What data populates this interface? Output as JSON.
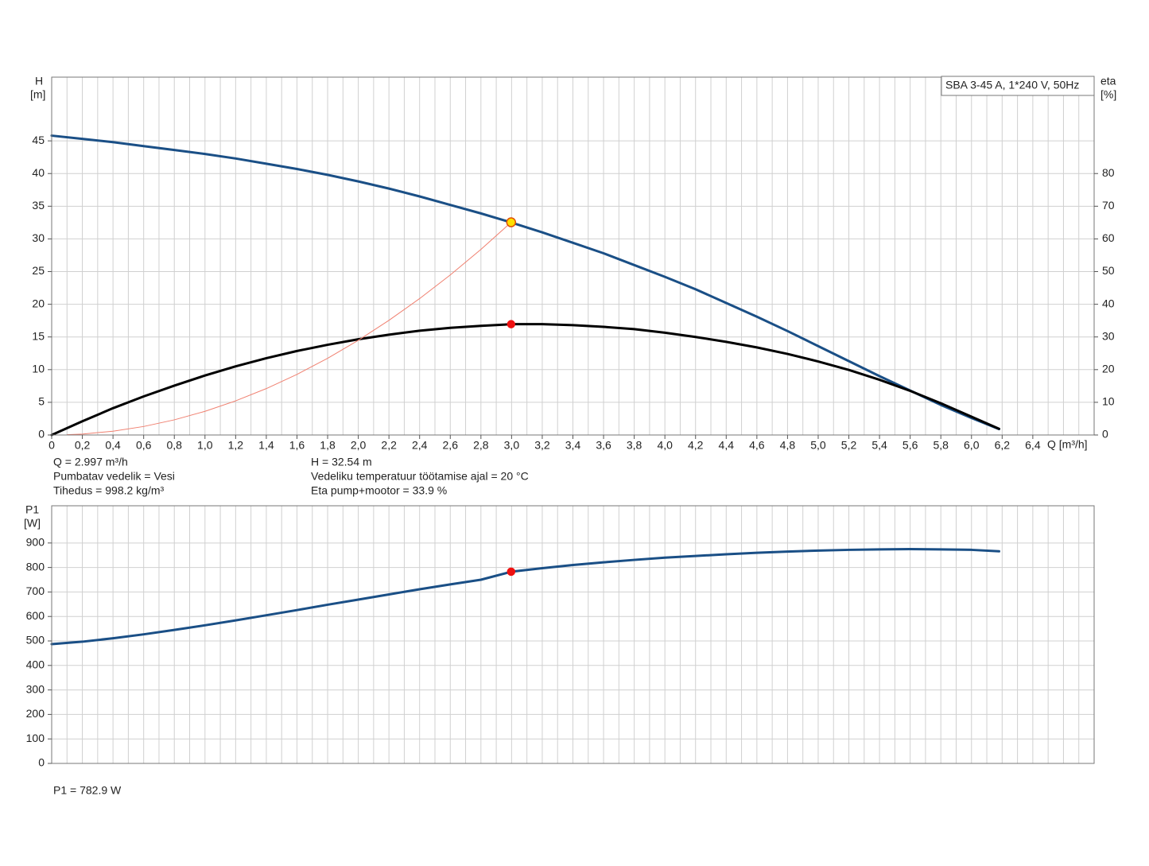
{
  "chart_data": [
    {
      "type": "line",
      "title": "SBA 3-45 A, 1*240 V, 50Hz",
      "y_label": "H",
      "y_unit": "[m]",
      "y2_label": "eta",
      "y2_unit": "[%]",
      "x_label": "Q [m³/h]",
      "xlim": [
        0,
        6.8
      ],
      "xticks": [
        0,
        {
          "value": 0.2,
          "label": "0,2"
        },
        {
          "value": 0.4,
          "label": "0,4"
        },
        {
          "value": 0.6,
          "label": "0,6"
        },
        {
          "value": 0.8,
          "label": "0,8"
        },
        {
          "value": 1.0,
          "label": "1,0"
        },
        {
          "value": 1.2,
          "label": "1,2"
        },
        {
          "value": 1.4,
          "label": "1,4"
        },
        {
          "value": 1.6,
          "label": "1,6"
        },
        {
          "value": 1.8,
          "label": "1,8"
        },
        {
          "value": 2.0,
          "label": "2,0"
        },
        {
          "value": 2.2,
          "label": "2,2"
        },
        {
          "value": 2.4,
          "label": "2,4"
        },
        {
          "value": 2.6,
          "label": "2,6"
        },
        {
          "value": 2.8,
          "label": "2,8"
        },
        {
          "value": 3.0,
          "label": "3,0"
        },
        {
          "value": 3.2,
          "label": "3,2"
        },
        {
          "value": 3.4,
          "label": "3,4"
        },
        {
          "value": 3.6,
          "label": "3,6"
        },
        {
          "value": 3.8,
          "label": "3,8"
        },
        {
          "value": 4.0,
          "label": "4,0"
        },
        {
          "value": 4.2,
          "label": "4,2"
        },
        {
          "value": 4.4,
          "label": "4,4"
        },
        {
          "value": 4.6,
          "label": "4,6"
        },
        {
          "value": 4.8,
          "label": "4,8"
        },
        {
          "value": 5.0,
          "label": "5,0"
        },
        {
          "value": 5.2,
          "label": "5,2"
        },
        {
          "value": 5.4,
          "label": "5,4"
        },
        {
          "value": 5.6,
          "label": "5,6"
        },
        {
          "value": 5.8,
          "label": "5,8"
        },
        {
          "value": 6.0,
          "label": "6,0"
        },
        {
          "value": 6.2,
          "label": "6,2"
        },
        {
          "value": 6.4,
          "label": "6,4"
        }
      ],
      "x_minor_grid": [
        0.1,
        0.3,
        0.5,
        0.7,
        0.9,
        1.1,
        1.3,
        1.5,
        1.7,
        1.9,
        2.1,
        2.3,
        2.5,
        2.7,
        2.9,
        3.1,
        3.3,
        3.5,
        3.7,
        3.9,
        4.1,
        4.3,
        4.5,
        4.7,
        4.9,
        5.1,
        5.3,
        5.5,
        5.7,
        5.9,
        6.1,
        6.3,
        6.5,
        6.6,
        6.7
      ],
      "ylim": [
        0,
        54.75
      ],
      "yticks": [
        0,
        5,
        10,
        15,
        20,
        25,
        30,
        35,
        40,
        45
      ],
      "y2lim": [
        0,
        109.5
      ],
      "y2ticks": [
        0,
        10,
        20,
        30,
        40,
        50,
        60,
        70,
        80
      ],
      "grid": true,
      "series": [
        {
          "color": "#1a4f86",
          "width": 3,
          "x": [
            0,
            0.2,
            0.4,
            0.6,
            0.8,
            1.0,
            1.2,
            1.4,
            1.6,
            1.8,
            2.0,
            2.2,
            2.4,
            2.6,
            2.8,
            3.0,
            3.2,
            3.4,
            3.6,
            3.8,
            4.0,
            4.2,
            4.4,
            4.6,
            4.8,
            5.0,
            5.2,
            5.4,
            5.6,
            5.8,
            6.0,
            6.18
          ],
          "values": [
            45.8,
            45.3,
            44.8,
            44.2,
            43.6,
            43.0,
            42.3,
            41.5,
            40.7,
            39.8,
            38.8,
            37.7,
            36.5,
            35.2,
            33.9,
            32.5,
            31.0,
            29.4,
            27.8,
            26.0,
            24.2,
            22.3,
            20.2,
            18.1,
            15.9,
            13.6,
            11.3,
            9.0,
            6.8,
            4.6,
            2.6,
            0.9
          ]
        },
        {
          "color": "#000000",
          "width": 3,
          "axis": "y2",
          "x": [
            0,
            0.2,
            0.4,
            0.6,
            0.8,
            1.0,
            1.2,
            1.4,
            1.6,
            1.8,
            2.0,
            2.2,
            2.4,
            2.6,
            2.8,
            3.0,
            3.2,
            3.4,
            3.6,
            3.8,
            4.0,
            4.2,
            4.4,
            4.6,
            4.8,
            5.0,
            5.2,
            5.4,
            5.6,
            5.8,
            6.0,
            6.18
          ],
          "values": [
            0,
            4.2,
            8.2,
            11.8,
            15.1,
            18.2,
            21.0,
            23.5,
            25.7,
            27.6,
            29.3,
            30.7,
            31.9,
            32.8,
            33.4,
            33.9,
            33.9,
            33.6,
            33.1,
            32.4,
            31.3,
            30.0,
            28.5,
            26.8,
            24.8,
            22.5,
            19.9,
            16.9,
            13.5,
            9.7,
            5.6,
            1.9
          ]
        },
        {
          "color": "#f08070",
          "width": 1,
          "x": [
            0.1,
            0.2,
            0.4,
            0.6,
            0.8,
            1.0,
            1.2,
            1.4,
            1.6,
            1.8,
            2.0,
            2.2,
            2.4,
            2.6,
            2.8,
            2.997
          ],
          "values": [
            0.04,
            0.14,
            0.58,
            1.3,
            2.32,
            3.62,
            5.22,
            7.1,
            9.27,
            11.74,
            14.49,
            17.54,
            20.87,
            24.49,
            28.4,
            32.54
          ]
        }
      ],
      "points": [
        {
          "x": 2.997,
          "y": 32.54,
          "fill": "#ffe000",
          "stroke": "#e05000"
        },
        {
          "x": 2.997,
          "y": 33.9,
          "axis": "y2",
          "fill": "#ee1111",
          "stroke": "#ee1111"
        }
      ],
      "notes_left": [
        "Q = 2.997 m³/h",
        "Pumbatav vedelik = Vesi",
        "Tihedus = 998.2 kg/m³"
      ],
      "notes_right": [
        "H = 32.54 m",
        "Vedeliku temperatuur töötamise ajal = 20 °C",
        "Eta pump+mootor = 33.9 %"
      ]
    },
    {
      "type": "line",
      "y_label": "P1",
      "y_unit": "[W]",
      "xlim": [
        0,
        6.8
      ],
      "x_grid": [
        0.1,
        0.2,
        0.3,
        0.4,
        0.5,
        0.6,
        0.7,
        0.8,
        0.9,
        1.0,
        1.1,
        1.2,
        1.3,
        1.4,
        1.5,
        1.6,
        1.7,
        1.8,
        1.9,
        2.0,
        2.1,
        2.2,
        2.3,
        2.4,
        2.5,
        2.6,
        2.7,
        2.8,
        2.9,
        3.0,
        3.1,
        3.2,
        3.3,
        3.4,
        3.5,
        3.6,
        3.7,
        3.8,
        3.9,
        4.0,
        4.1,
        4.2,
        4.3,
        4.4,
        4.5,
        4.6,
        4.7,
        4.8,
        4.9,
        5.0,
        5.1,
        5.2,
        5.3,
        5.4,
        5.5,
        5.6,
        5.7,
        5.8,
        5.9,
        6.0,
        6.1,
        6.2,
        6.3,
        6.4,
        6.5,
        6.6,
        6.7
      ],
      "ylim": [
        0,
        1052
      ],
      "yticks": [
        0,
        100,
        200,
        300,
        400,
        500,
        600,
        700,
        800,
        900
      ],
      "grid": true,
      "series": [
        {
          "color": "#1a4f86",
          "width": 3,
          "x": [
            0,
            0.2,
            0.4,
            0.6,
            0.8,
            1.0,
            1.2,
            1.4,
            1.6,
            1.8,
            2.0,
            2.2,
            2.4,
            2.6,
            2.8,
            3.0,
            3.2,
            3.4,
            3.6,
            3.8,
            4.0,
            4.2,
            4.4,
            4.6,
            4.8,
            5.0,
            5.2,
            5.4,
            5.6,
            5.8,
            6.0,
            6.18
          ],
          "values": [
            487,
            497,
            511,
            527,
            545,
            564,
            584,
            605,
            626,
            648,
            669,
            690,
            711,
            731,
            750,
            783,
            797,
            810,
            821,
            831,
            840,
            847,
            854,
            860,
            865,
            869,
            872,
            874,
            875,
            874,
            872,
            866
          ]
        }
      ],
      "points": [
        {
          "x": 2.997,
          "y": 782.9,
          "fill": "#ee1111",
          "stroke": "#ee1111"
        }
      ],
      "notes_left": [
        "P1 = 782.9 W"
      ]
    }
  ]
}
